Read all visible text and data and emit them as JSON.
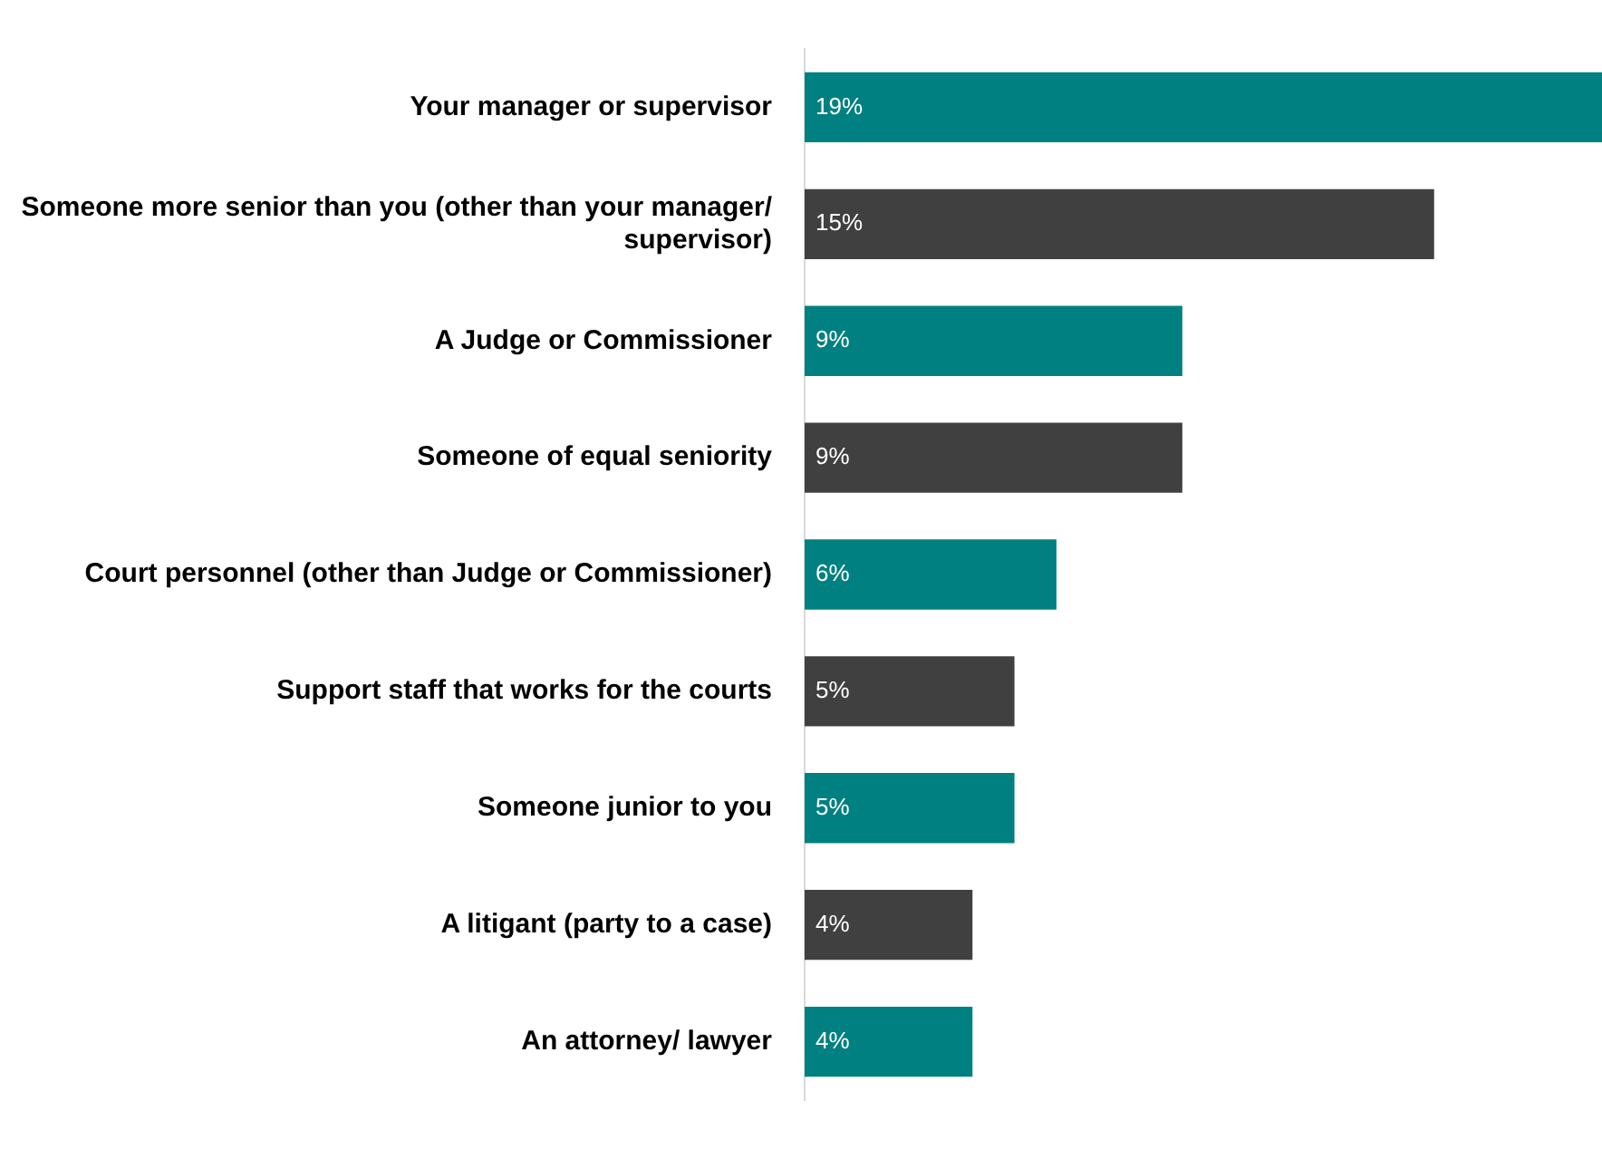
{
  "chart_data": {
    "type": "bar",
    "orientation": "horizontal",
    "categories": [
      "Your manager or supervisor",
      "Someone more senior than you (other than your manager/ supervisor)",
      "A Judge or Commissioner",
      "Someone of equal seniority",
      "Court personnel (other than Judge or Commissioner)",
      "Support staff that works for the courts",
      "Someone junior to you",
      "A litigant (party to a case)",
      "An attorney/ lawyer"
    ],
    "values": [
      19,
      15,
      9,
      9,
      6,
      5,
      5,
      4,
      4
    ],
    "value_labels": [
      "19%",
      "15%",
      "9%",
      "9%",
      "6%",
      "5%",
      "5%",
      "4%",
      "4%"
    ],
    "colors": [
      "#008080",
      "#404040",
      "#008080",
      "#404040",
      "#008080",
      "#404040",
      "#008080",
      "#404040",
      "#008080"
    ],
    "grid": false,
    "legend": false
  }
}
